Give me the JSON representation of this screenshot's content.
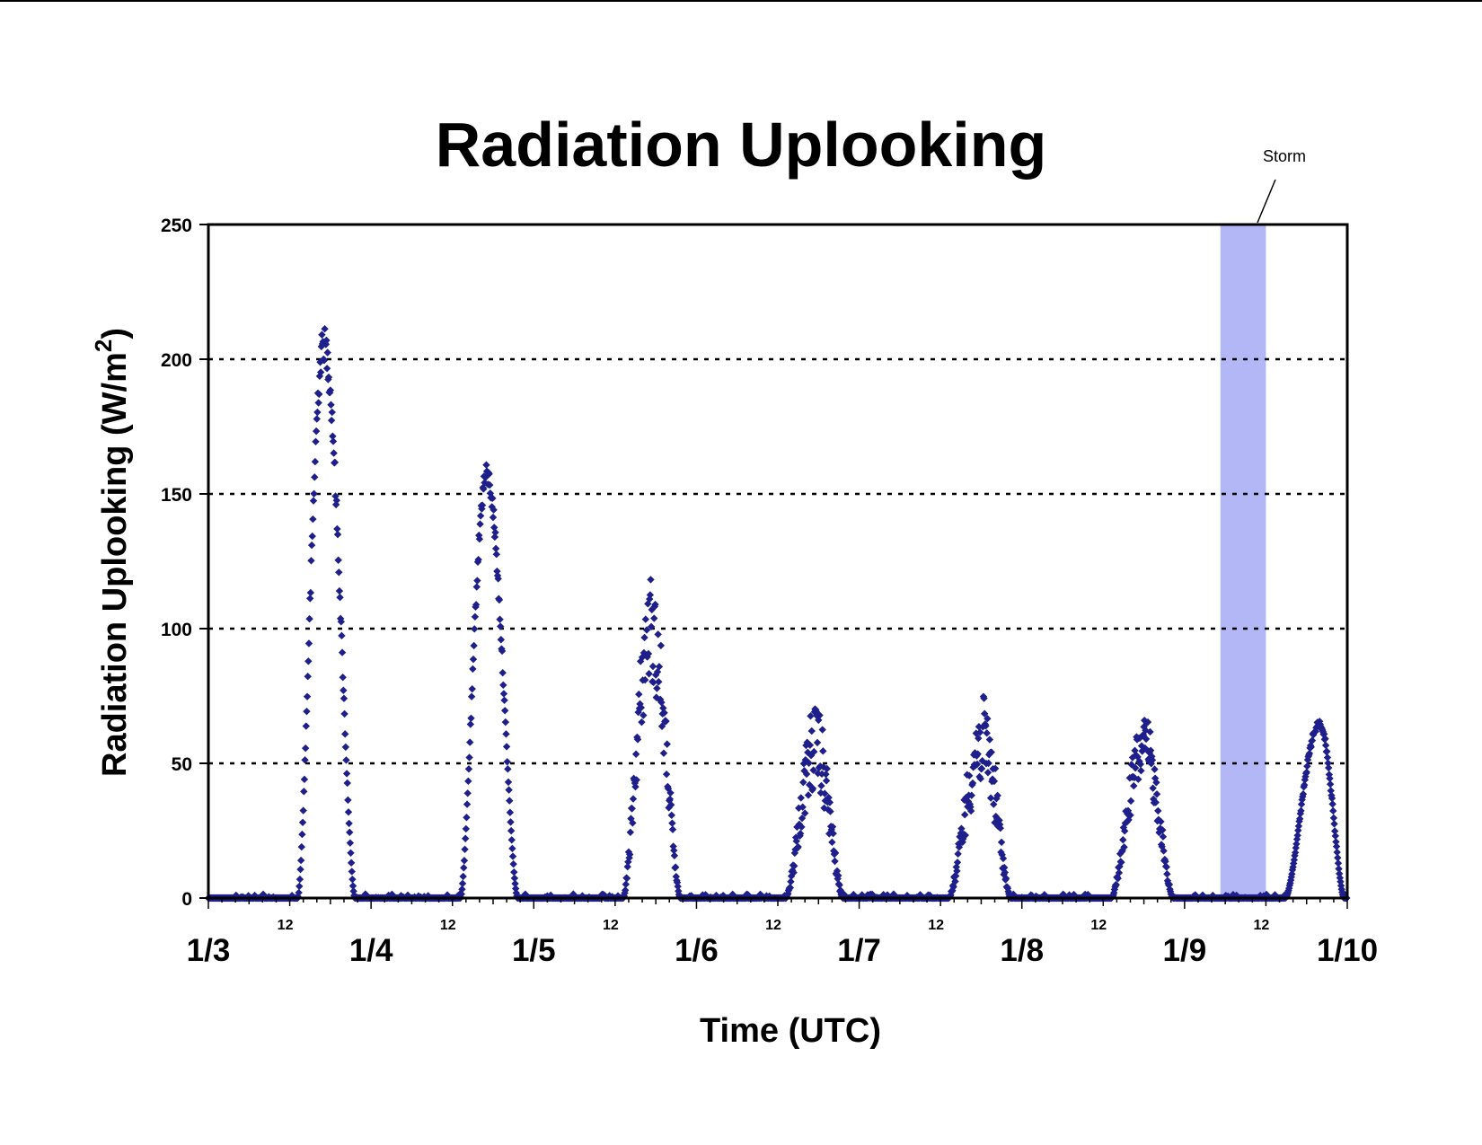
{
  "chart_data": {
    "type": "scatter",
    "title": "Radiation Uplooking",
    "xlabel": "Time (UTC)",
    "ylabel": "Radiation Uplooking (W/m",
    "ylabel_superscript": "2",
    "ylabel_close": ")",
    "ylim": [
      0,
      250
    ],
    "y_ticks": [
      "0",
      "50",
      "100",
      "150",
      "200",
      "250"
    ],
    "y_tick_values": [
      0,
      50,
      100,
      150,
      200,
      250
    ],
    "y_gridlines": [
      50,
      100,
      150,
      200
    ],
    "grid": "horizontal dotted",
    "xlim_days": [
      "1/3",
      "1/10"
    ],
    "x_day_labels": [
      "1/3",
      "1/4",
      "1/5",
      "1/6",
      "1/7",
      "1/8",
      "1/9",
      "1/10"
    ],
    "x_hour_label": "12",
    "marker_color": "#1f1f8c",
    "series": [
      {
        "marker": "diamond",
        "x_unit": "days since 1/3 00:00 UTC",
        "daily_peaks": [
          {
            "day": "1/3",
            "start": 0.55,
            "end": 0.9,
            "peak_time": 0.71,
            "peak": 212
          },
          {
            "day": "1/4",
            "start": 1.55,
            "end": 1.9,
            "peak_time": 1.71,
            "peak": 161
          },
          {
            "day": "1/5",
            "start": 2.55,
            "end": 2.9,
            "peak_time": 2.72,
            "peak": 120
          },
          {
            "day": "1/6",
            "start": 3.55,
            "end": 3.9,
            "peak_time": 3.73,
            "peak": 72
          },
          {
            "day": "1/7",
            "start": 4.55,
            "end": 4.93,
            "peak_time": 4.76,
            "peak": 75
          },
          {
            "day": "1/8",
            "start": 5.55,
            "end": 5.93,
            "peak_time": 5.75,
            "peak": 68
          },
          {
            "day": "1/9",
            "start": 6.62,
            "end": 6.98,
            "peak_time": 6.83,
            "peak": 66
          }
        ]
      }
    ],
    "annotation": {
      "text": "Storm",
      "band_x_start": 6.22,
      "band_x_end": 6.5,
      "band_color": "#b3b7f5"
    }
  }
}
